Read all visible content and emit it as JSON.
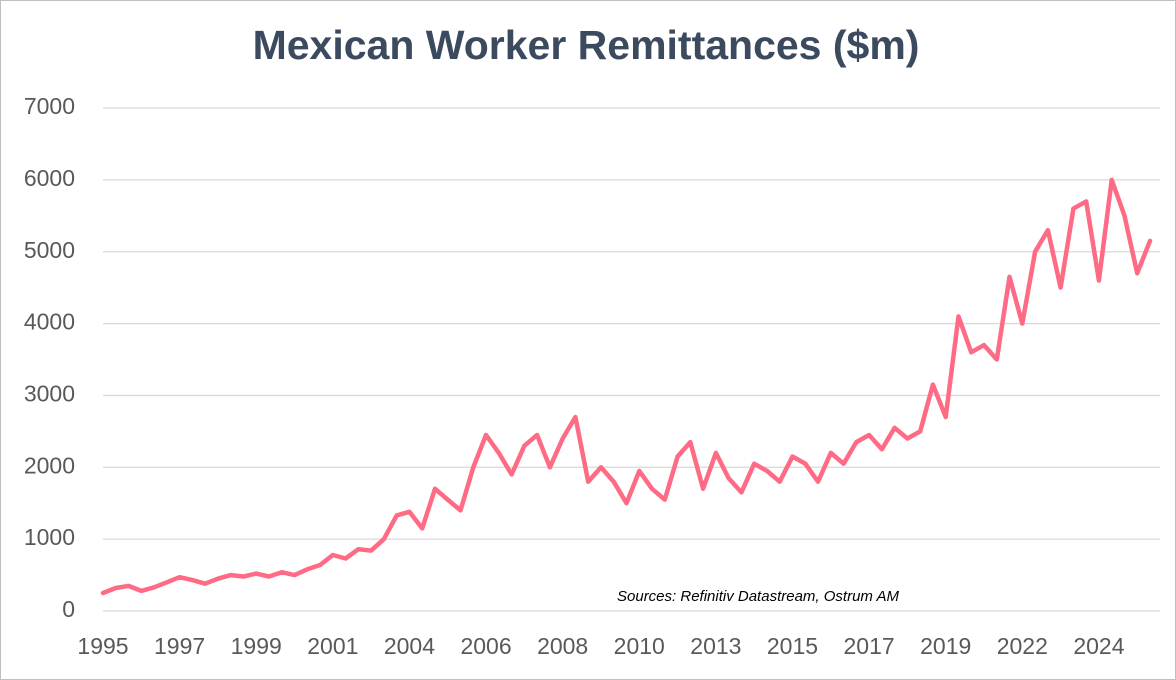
{
  "chart_data": {
    "type": "line",
    "title": "Mexican Worker Remittances ($m)",
    "annotation": "Sources: Refinitiv Datastream, Ostrum AM",
    "categories": [
      "1995",
      null,
      null,
      null,
      null,
      null,
      "1997",
      null,
      null,
      null,
      null,
      null,
      "1999",
      null,
      null,
      null,
      null,
      null,
      "2001",
      null,
      null,
      null,
      null,
      null,
      "2004",
      null,
      null,
      null,
      null,
      null,
      "2006",
      null,
      null,
      null,
      null,
      null,
      "2008",
      null,
      null,
      null,
      null,
      null,
      "2010",
      null,
      null,
      null,
      null,
      null,
      "2013",
      null,
      null,
      null,
      null,
      null,
      "2015",
      null,
      null,
      null,
      null,
      null,
      "2017",
      null,
      null,
      null,
      null,
      null,
      "2019",
      null,
      null,
      null,
      null,
      null,
      "2022",
      null,
      null,
      null,
      null,
      null,
      "2024",
      null,
      null,
      null,
      null
    ],
    "series": [
      {
        "color": "#ff6b85",
        "values": [
          250,
          320,
          350,
          280,
          330,
          400,
          470,
          430,
          380,
          450,
          500,
          480,
          520,
          480,
          540,
          500,
          580,
          640,
          780,
          730,
          860,
          840,
          1000,
          1330,
          1380,
          1150,
          1700,
          1550,
          1400,
          2000,
          2450,
          2200,
          1900,
          2300,
          2450,
          2000,
          2400,
          2700,
          1800,
          2000,
          1800,
          1500,
          1950,
          1700,
          1550,
          2150,
          2350,
          1700,
          2200,
          1850,
          1650,
          2050,
          1950,
          1800,
          2150,
          2050,
          1800,
          2200,
          2050,
          2350,
          2450,
          2250,
          2550,
          2400,
          2500,
          3150,
          2700,
          4100,
          3600,
          3700,
          3500,
          4650,
          4000,
          5000,
          5300,
          4500,
          5600,
          5700,
          4600,
          6000,
          5500,
          4700,
          5150
        ]
      }
    ],
    "ylim": [
      0,
      7000
    ],
    "yticks": [
      0,
      1000,
      2000,
      3000,
      4000,
      5000,
      6000,
      7000
    ],
    "grid": true
  }
}
